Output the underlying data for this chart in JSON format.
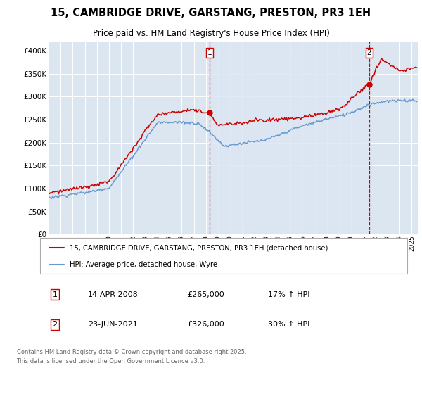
{
  "title": "15, CAMBRIDGE DRIVE, GARSTANG, PRESTON, PR3 1EH",
  "subtitle": "Price paid vs. HM Land Registry's House Price Index (HPI)",
  "legend_label_red": "15, CAMBRIDGE DRIVE, GARSTANG, PRESTON, PR3 1EH (detached house)",
  "legend_label_blue": "HPI: Average price, detached house, Wyre",
  "annotation1_date": "14-APR-2008",
  "annotation1_price": "£265,000",
  "annotation1_hpi": "17% ↑ HPI",
  "annotation2_date": "23-JUN-2021",
  "annotation2_price": "£326,000",
  "annotation2_hpi": "30% ↑ HPI",
  "footnote": "Contains HM Land Registry data © Crown copyright and database right 2025.\nThis data is licensed under the Open Government Licence v3.0.",
  "red_color": "#cc0000",
  "blue_color": "#6699cc",
  "shade_color": "#dce6f4",
  "bg_color": "#dce6f1",
  "ylim": [
    0,
    420000
  ],
  "yticks": [
    0,
    50000,
    100000,
    150000,
    200000,
    250000,
    300000,
    350000,
    400000
  ],
  "ytick_labels": [
    "£0",
    "£50K",
    "£100K",
    "£150K",
    "£200K",
    "£250K",
    "£300K",
    "£350K",
    "£400K"
  ],
  "sale1_year": 2008.29,
  "sale1_price": 265000,
  "sale2_year": 2021.48,
  "sale2_price": 326000,
  "vline1_year": 2008.29,
  "vline2_year": 2021.48,
  "xmin": 1995,
  "xmax": 2025.5
}
